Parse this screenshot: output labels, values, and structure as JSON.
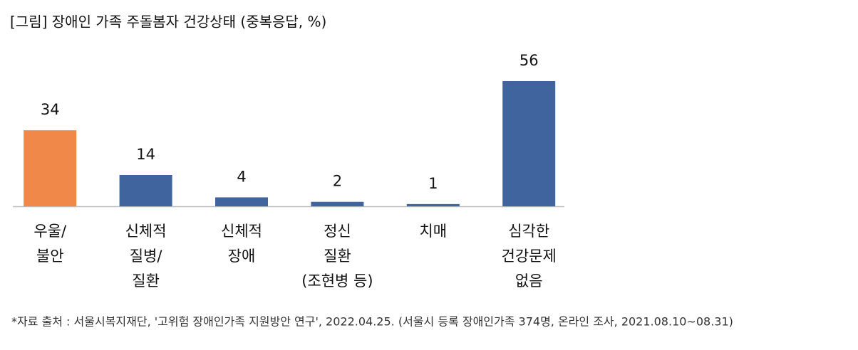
{
  "chart_data": {
    "type": "bar",
    "title": "[그림] 장애인 가족 주돌봄자 건강상태 (중복응답, %)",
    "categories": [
      [
        "우울/",
        "불안"
      ],
      [
        "신체적",
        "질병/",
        "질환"
      ],
      [
        "신체적",
        "장애"
      ],
      [
        "정신",
        "질환",
        "(조현병 등)"
      ],
      [
        "치매"
      ],
      [
        "심각한",
        "건강문제",
        "없음"
      ]
    ],
    "values": [
      34,
      14,
      4,
      2,
      1,
      56
    ],
    "colors": [
      "#f0884a",
      "#40649e",
      "#40649e",
      "#40649e",
      "#40649e",
      "#40649e"
    ],
    "source": "*자료 출처 : 서울시복지재단, '고위험 장애인가족 지원방안 연구', 2022.04.25. (서울시 등록 장애인가족 374명, 온라인 조사, 2021.08.10~08.31)"
  }
}
